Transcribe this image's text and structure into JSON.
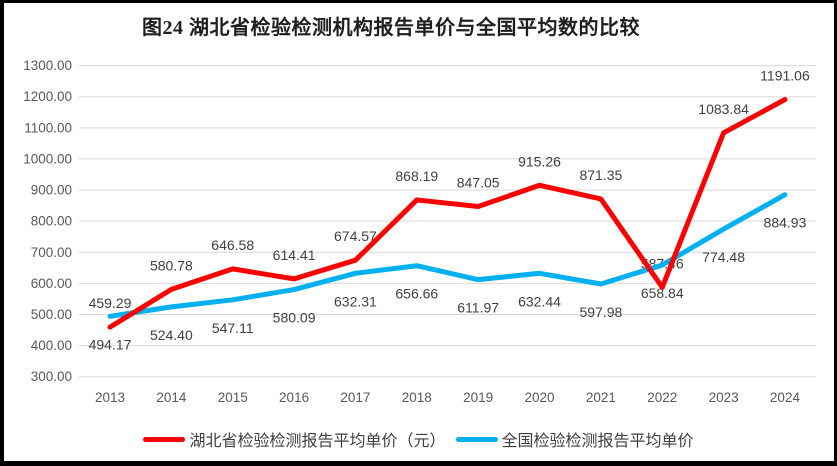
{
  "figure_title": "图24 湖北省检验检测机构报告单价与全国平均数的比较",
  "chart_data": {
    "type": "line",
    "title": "图24 湖北省检验检测机构报告单价与全国平均数的比较",
    "categories": [
      "2013",
      "2014",
      "2015",
      "2016",
      "2017",
      "2018",
      "2019",
      "2020",
      "2021",
      "2022",
      "2023",
      "2024"
    ],
    "series": [
      {
        "name": "湖北省检验检测报告平均单价（元）",
        "color": "#FF0000",
        "label_position": "above",
        "values": [
          459.29,
          580.78,
          646.58,
          614.41,
          674.57,
          868.19,
          847.05,
          915.26,
          871.35,
          587.46,
          1083.84,
          1191.06
        ]
      },
      {
        "name": "全国检验检测报告平均单价",
        "color": "#00B0F0",
        "label_position": "below",
        "values": [
          494.17,
          524.4,
          547.11,
          580.09,
          632.31,
          656.66,
          611.97,
          632.44,
          597.98,
          658.84,
          774.48,
          884.93
        ]
      }
    ],
    "ylim": [
      300,
      1300
    ],
    "ytick_step": 100,
    "value_decimals": 2,
    "grid": true,
    "legend_position": "bottom",
    "gridline_color": "#D9D9D9",
    "axis_label_color": "#595959",
    "data_label_color": "#404040",
    "line_width": 5
  }
}
